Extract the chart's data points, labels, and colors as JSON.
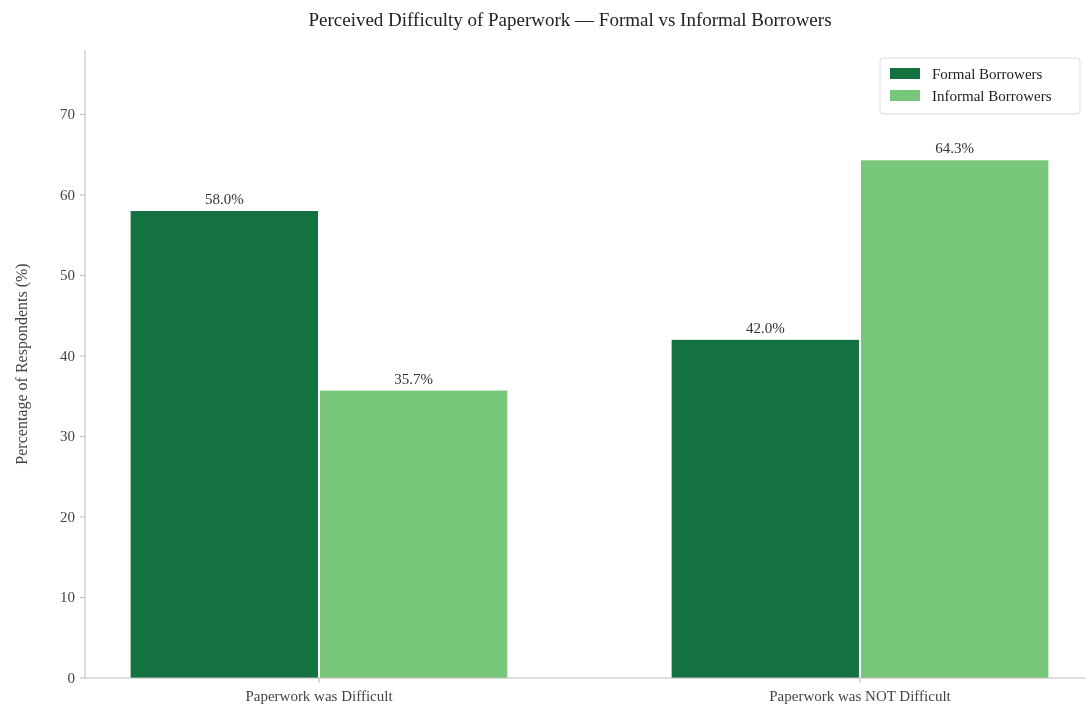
{
  "chart_data": {
    "type": "bar",
    "title": "Perceived Difficulty of Paperwork — Formal vs Informal Borrowers",
    "ylabel": "Percentage of Respondents (%)",
    "categories": [
      "Paperwork was Difficult",
      "Paperwork was NOT Difficult"
    ],
    "series": [
      {
        "name": "Formal Borrowers",
        "color": "#147240",
        "values": [
          58.0,
          42.0
        ],
        "value_labels": [
          "58.0%",
          "42.0%"
        ]
      },
      {
        "name": "Informal Borrowers",
        "color": "#78c679",
        "values": [
          35.7,
          64.3
        ],
        "value_labels": [
          "35.7%",
          "64.3%"
        ]
      }
    ],
    "ylim": [
      0,
      78
    ],
    "yticks": [
      0,
      10,
      20,
      30,
      40,
      50,
      60,
      70
    ],
    "grid": false,
    "legend": "top right"
  }
}
